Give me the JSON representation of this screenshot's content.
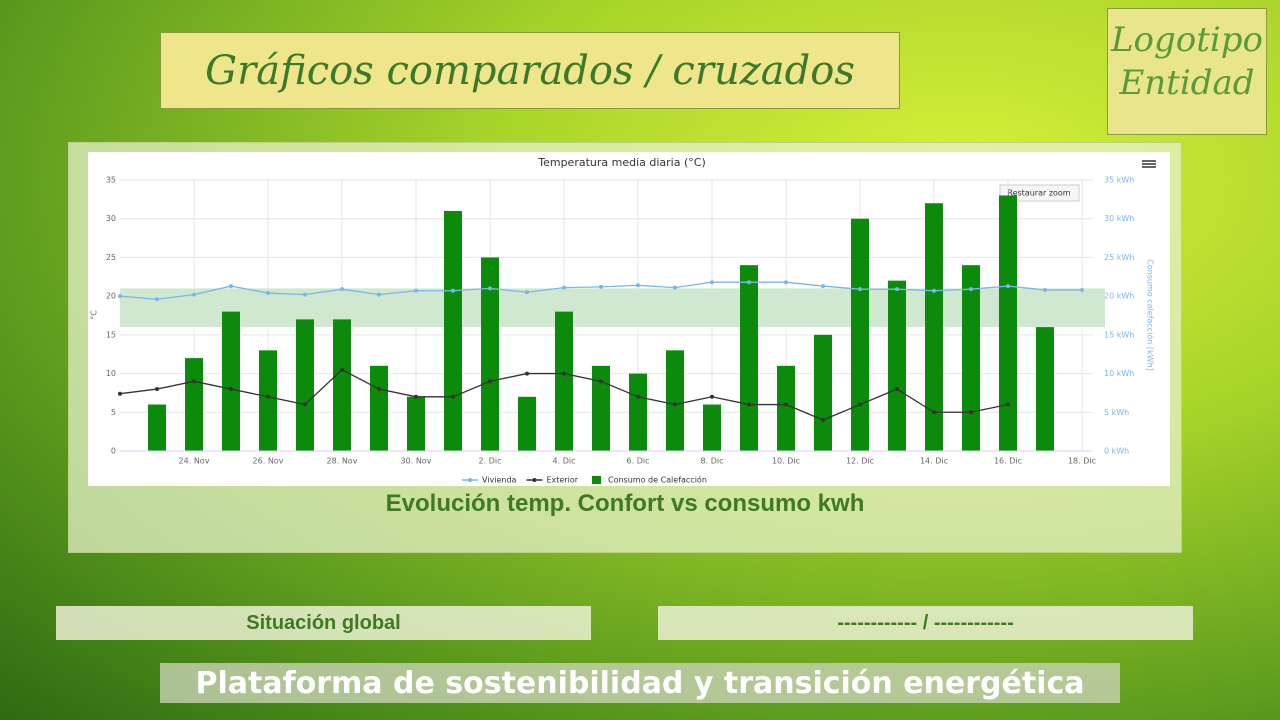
{
  "header": {
    "title": "Gráficos comparados / cruzados"
  },
  "logo": {
    "lines": [
      "Logotipo",
      "Entidad"
    ]
  },
  "caption": "Evolución temp. Confort vs consumo kwh",
  "panels": {
    "left": "Situación global",
    "right": "------------ / ------------"
  },
  "footer": "Plataforma de sostenibilidad y transición energética",
  "chart_data": {
    "type": "combo",
    "title": "Temperatura media diaria (°C)",
    "y_label": "°C",
    "y2_label": "Consumo calefacción [kWh]",
    "button": "Restaurar zoom",
    "categories": [
      null,
      null,
      "24. Nov",
      null,
      "26. Nov",
      null,
      "28. Nov",
      null,
      "30. Nov",
      null,
      "2. Dic",
      null,
      "4. Dic",
      null,
      "6. Dic",
      null,
      "8. Dic",
      null,
      "10. Dic",
      null,
      "12. Dic",
      null,
      "14. Dic",
      null,
      "16. Dic",
      null,
      "18. Dic"
    ],
    "band": [
      16,
      21
    ],
    "band_color": "#cfe8cf",
    "series": [
      {
        "name": "Vivienda",
        "type": "line",
        "color": "#7cb5ec",
        "values": [
          20,
          19.6,
          20.2,
          21.3,
          20.4,
          20.2,
          20.9,
          20.2,
          20.7,
          20.7,
          21,
          20.5,
          21.1,
          21.2,
          21.4,
          21.1,
          21.8,
          21.8,
          21.8,
          21.3,
          20.9,
          20.9,
          20.7,
          20.9,
          21.3,
          20.8,
          20.8
        ]
      },
      {
        "name": "Exterior",
        "type": "line",
        "color": "#333333",
        "values": [
          7.4,
          8,
          9,
          8,
          7,
          6,
          10.5,
          8,
          7,
          7,
          9,
          10,
          10,
          9,
          7,
          6,
          7,
          6,
          6,
          4,
          6,
          8,
          5,
          5,
          6,
          null,
          null
        ]
      },
      {
        "name": "Consumo de Calefacción",
        "type": "bar",
        "axis": "y2",
        "color": "#0b8a0b",
        "values": [
          null,
          6,
          12,
          18,
          13,
          17,
          17,
          11,
          7,
          31,
          25,
          7,
          18,
          11,
          10,
          13,
          6,
          24,
          11,
          15,
          30,
          22,
          32,
          24,
          33,
          16,
          null
        ]
      }
    ],
    "ylim": [
      0,
      35
    ],
    "yticks": [
      0,
      5,
      10,
      15,
      20,
      25,
      30,
      35
    ],
    "y2lim": [
      0,
      35
    ],
    "y2ticks": [
      {
        "value": 0,
        "label": "0 kWh"
      },
      {
        "value": 5,
        "label": "5 kWh"
      },
      {
        "value": 10,
        "label": "10 kWh"
      },
      {
        "value": 15,
        "label": "15 kWh"
      },
      {
        "value": 20,
        "label": "20 kWh"
      },
      {
        "value": 25,
        "label": "25 kWh"
      },
      {
        "value": 30,
        "label": "30 kWh"
      },
      {
        "value": 35,
        "label": "35 kWh"
      }
    ],
    "grid": true
  }
}
